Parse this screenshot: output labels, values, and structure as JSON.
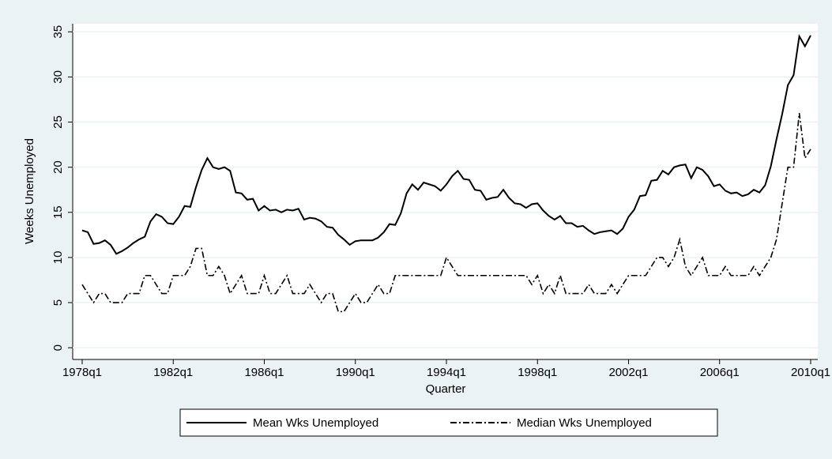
{
  "chart_data": {
    "type": "line",
    "y_label": "Weeks Unemployed",
    "x_label": "Quarter",
    "categories": [
      "1978q1",
      null,
      null,
      null,
      null,
      null,
      null,
      null,
      null,
      null,
      null,
      null,
      null,
      null,
      null,
      null,
      "1982q1",
      null,
      null,
      null,
      null,
      null,
      null,
      null,
      null,
      null,
      null,
      null,
      null,
      null,
      null,
      null,
      "1986q1",
      null,
      null,
      null,
      null,
      null,
      null,
      null,
      null,
      null,
      null,
      null,
      null,
      null,
      null,
      null,
      "1990q1",
      null,
      null,
      null,
      null,
      null,
      null,
      null,
      null,
      null,
      null,
      null,
      null,
      null,
      null,
      null,
      "1994q1",
      null,
      null,
      null,
      null,
      null,
      null,
      null,
      null,
      null,
      null,
      null,
      null,
      null,
      null,
      null,
      "1998q1",
      null,
      null,
      null,
      null,
      null,
      null,
      null,
      null,
      null,
      null,
      null,
      null,
      null,
      null,
      null,
      "2002q1",
      null,
      null,
      null,
      null,
      null,
      null,
      null,
      null,
      null,
      null,
      null,
      null,
      null,
      null,
      null,
      "2006q1",
      null,
      null,
      null,
      null,
      null,
      null,
      null,
      null,
      null,
      null,
      null,
      null,
      null,
      null,
      null,
      "2010q1"
    ],
    "series": [
      {
        "name": "Mean Wks Unemployed",
        "color": "#000000",
        "dash": "solid",
        "values": [
          13.0,
          12.8,
          11.5,
          11.6,
          11.9,
          11.4,
          10.4,
          10.7,
          11.1,
          11.6,
          12.0,
          12.3,
          14.0,
          14.8,
          14.5,
          13.8,
          13.7,
          14.5,
          15.7,
          15.6,
          17.8,
          19.7,
          21.0,
          20.0,
          19.8,
          20.0,
          19.6,
          17.2,
          17.1,
          16.4,
          16.5,
          15.2,
          15.7,
          15.2,
          15.3,
          15.0,
          15.3,
          15.2,
          15.4,
          14.2,
          14.4,
          14.3,
          14.0,
          13.4,
          13.3,
          12.5,
          12.0,
          11.4,
          11.8,
          11.9,
          11.9,
          11.9,
          12.2,
          12.8,
          13.7,
          13.6,
          14.9,
          17.1,
          18.1,
          17.5,
          18.3,
          18.1,
          17.9,
          17.4,
          18.1,
          19.0,
          19.6,
          18.7,
          18.6,
          17.5,
          17.4,
          16.4,
          16.6,
          16.7,
          17.5,
          16.6,
          16.0,
          15.9,
          15.5,
          15.9,
          16.0,
          15.2,
          14.6,
          14.2,
          14.6,
          13.8,
          13.8,
          13.4,
          13.5,
          13.0,
          12.6,
          12.8,
          12.9,
          13.0,
          12.6,
          13.2,
          14.5,
          15.3,
          16.8,
          16.9,
          18.5,
          18.6,
          19.6,
          19.2,
          20.0,
          20.2,
          20.3,
          18.8,
          20.0,
          19.7,
          19.0,
          17.9,
          18.1,
          17.4,
          17.1,
          17.2,
          16.8,
          17.0,
          17.5,
          17.2,
          18.0,
          20.1,
          23.1,
          25.9,
          29.1,
          30.2,
          34.5,
          33.4,
          34.6
        ]
      },
      {
        "name": "Median Wks Unemployed",
        "color": "#000000",
        "dash": "dashdot",
        "values": [
          7,
          6,
          5,
          6,
          6,
          5,
          5,
          5,
          6,
          6,
          6,
          8,
          8,
          7,
          6,
          6,
          8,
          8,
          8,
          9,
          11,
          11,
          8,
          8,
          9,
          8,
          6,
          7,
          8,
          6,
          6,
          6,
          8,
          6,
          6,
          7,
          8,
          6,
          6,
          6,
          7,
          6,
          5,
          6,
          6,
          4,
          4,
          5,
          6,
          5,
          5,
          6,
          7,
          6,
          6,
          8,
          8,
          8,
          8,
          8,
          8,
          8,
          8,
          8,
          10,
          9,
          8,
          8,
          8,
          8,
          8,
          8,
          8,
          8,
          8,
          8,
          8,
          8,
          8,
          7,
          8,
          6,
          7,
          6,
          8,
          6,
          6,
          6,
          6,
          7,
          6,
          6,
          6,
          7,
          6,
          7,
          8,
          8,
          8,
          8,
          9,
          10,
          10,
          9,
          10,
          12,
          9,
          8,
          9,
          10,
          8,
          8,
          8,
          9,
          8,
          8,
          8,
          8,
          9,
          8,
          9,
          10,
          12,
          16,
          20,
          20,
          26,
          21,
          22
        ]
      }
    ],
    "ylim": [
      -1.3,
      35.9
    ],
    "yticks": [
      0,
      5,
      10,
      15,
      20,
      25,
      30,
      35
    ],
    "grid": true,
    "legend": "bottom"
  }
}
